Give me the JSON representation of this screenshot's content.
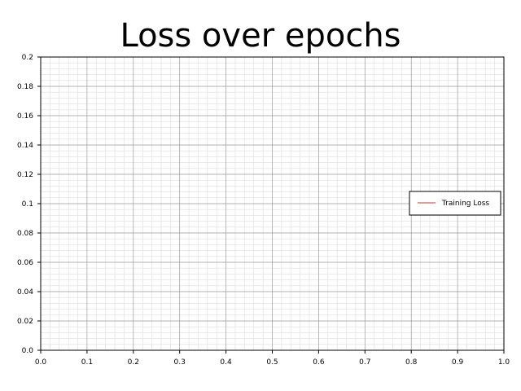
{
  "chart_data": {
    "type": "line",
    "title": "Loss over epochs",
    "xlabel": "",
    "ylabel": "",
    "xlim": [
      0,
      1
    ],
    "ylim": [
      0,
      0.2
    ],
    "x_ticks": [
      "0.0",
      "0.1",
      "0.2",
      "0.3",
      "0.4",
      "0.5",
      "0.6",
      "0.7",
      "0.8",
      "0.9",
      "1.0"
    ],
    "y_ticks": [
      "0.0",
      "0.02",
      "0.04",
      "0.06",
      "0.08",
      "0.1",
      "0.12",
      "0.14",
      "0.16",
      "0.18",
      "0.2"
    ],
    "grid": true,
    "minor_grid": true,
    "legend_position": "right",
    "series": [
      {
        "name": "Training Loss",
        "color": "#c0392b",
        "x": [],
        "y": []
      }
    ]
  }
}
